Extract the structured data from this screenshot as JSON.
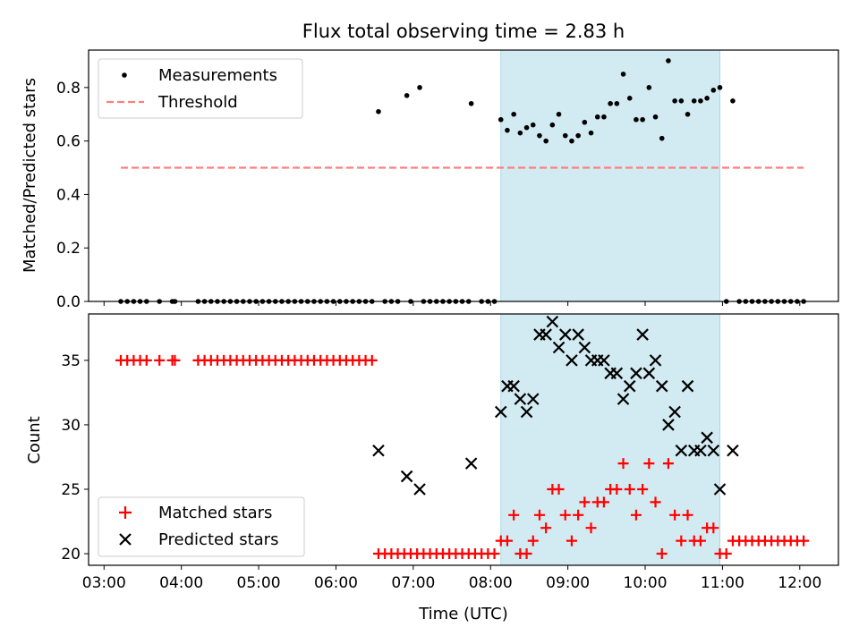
{
  "title": "Flux total observing time = 2.83 h",
  "colors": {
    "measurement": "#000000",
    "threshold": "#ff7f7f",
    "matched": "#ff0000",
    "predicted": "#000000",
    "highlight": "#add8e6"
  },
  "chart_data": [
    {
      "type": "scatter",
      "xlabel": "",
      "ylabel": "Matched/Predicted stars",
      "xlim": [
        "02:48",
        "12:30"
      ],
      "ylim": [
        0,
        0.94
      ],
      "yticks": [
        0.0,
        0.2,
        0.4,
        0.6,
        0.8
      ],
      "ytick_labels": [
        "0.0",
        "0.2",
        "0.4",
        "0.6",
        "0.8"
      ],
      "grid": false,
      "legend_position": "upper-left",
      "highlight_span": [
        "08:08",
        "10:58"
      ],
      "series": [
        {
          "name": "Measurements",
          "marker": "dot",
          "points": [
            [
              "03:13",
              0
            ],
            [
              "03:18",
              0
            ],
            [
              "03:23",
              0
            ],
            [
              "03:28",
              0
            ],
            [
              "03:33",
              0
            ],
            [
              "03:43",
              0
            ],
            [
              "03:53",
              0
            ],
            [
              "03:55",
              0
            ],
            [
              "04:13",
              0
            ],
            [
              "04:18",
              0
            ],
            [
              "04:23",
              0
            ],
            [
              "04:28",
              0
            ],
            [
              "04:33",
              0
            ],
            [
              "04:38",
              0
            ],
            [
              "04:43",
              0
            ],
            [
              "04:48",
              0
            ],
            [
              "04:53",
              0
            ],
            [
              "04:58",
              0
            ],
            [
              "05:03",
              0
            ],
            [
              "05:08",
              0
            ],
            [
              "05:13",
              0
            ],
            [
              "05:18",
              0
            ],
            [
              "05:23",
              0
            ],
            [
              "05:28",
              0
            ],
            [
              "05:33",
              0
            ],
            [
              "05:38",
              0
            ],
            [
              "05:43",
              0
            ],
            [
              "05:48",
              0
            ],
            [
              "05:53",
              0
            ],
            [
              "05:58",
              0
            ],
            [
              "06:03",
              0
            ],
            [
              "06:08",
              0
            ],
            [
              "06:13",
              0
            ],
            [
              "06:18",
              0
            ],
            [
              "06:23",
              0
            ],
            [
              "06:28",
              0
            ],
            [
              "06:33",
              0.71
            ],
            [
              "06:38",
              0
            ],
            [
              "06:43",
              0
            ],
            [
              "06:48",
              0
            ],
            [
              "06:55",
              0.77
            ],
            [
              "06:58",
              0
            ],
            [
              "07:05",
              0.8
            ],
            [
              "07:08",
              0
            ],
            [
              "07:13",
              0
            ],
            [
              "07:18",
              0
            ],
            [
              "07:23",
              0
            ],
            [
              "07:28",
              0
            ],
            [
              "07:33",
              0
            ],
            [
              "07:38",
              0
            ],
            [
              "07:43",
              0
            ],
            [
              "07:45",
              0.74
            ],
            [
              "07:53",
              0
            ],
            [
              "07:58",
              0
            ],
            [
              "08:03",
              0
            ],
            [
              "08:08",
              0.68
            ],
            [
              "08:13",
              0.64
            ],
            [
              "08:18",
              0.7
            ],
            [
              "08:23",
              0.63
            ],
            [
              "08:28",
              0.65
            ],
            [
              "08:33",
              0.66
            ],
            [
              "08:38",
              0.62
            ],
            [
              "08:43",
              0.6
            ],
            [
              "08:48",
              0.66
            ],
            [
              "08:53",
              0.7
            ],
            [
              "08:58",
              0.62
            ],
            [
              "09:03",
              0.6
            ],
            [
              "09:08",
              0.62
            ],
            [
              "09:13",
              0.67
            ],
            [
              "09:18",
              0.63
            ],
            [
              "09:23",
              0.69
            ],
            [
              "09:28",
              0.69
            ],
            [
              "09:33",
              0.74
            ],
            [
              "09:38",
              0.74
            ],
            [
              "09:43",
              0.85
            ],
            [
              "09:48",
              0.76
            ],
            [
              "09:53",
              0.68
            ],
            [
              "09:58",
              0.68
            ],
            [
              "10:03",
              0.8
            ],
            [
              "10:08",
              0.69
            ],
            [
              "10:13",
              0.61
            ],
            [
              "10:18",
              0.9
            ],
            [
              "10:23",
              0.75
            ],
            [
              "10:28",
              0.75
            ],
            [
              "10:33",
              0.7
            ],
            [
              "10:38",
              0.75
            ],
            [
              "10:43",
              0.75
            ],
            [
              "10:48",
              0.76
            ],
            [
              "10:53",
              0.79
            ],
            [
              "10:58",
              0.8
            ],
            [
              "11:03",
              0
            ],
            [
              "11:08",
              0.75
            ],
            [
              "11:13",
              0
            ],
            [
              "11:18",
              0
            ],
            [
              "11:23",
              0
            ],
            [
              "11:28",
              0
            ],
            [
              "11:33",
              0
            ],
            [
              "11:38",
              0
            ],
            [
              "11:43",
              0
            ],
            [
              "11:48",
              0
            ],
            [
              "11:53",
              0
            ],
            [
              "11:58",
              0
            ],
            [
              "12:03",
              0
            ]
          ]
        },
        {
          "name": "Threshold",
          "line": "dashed",
          "x": [
            "03:13",
            "12:03"
          ],
          "y": [
            0.5,
            0.5
          ]
        }
      ]
    },
    {
      "type": "scatter",
      "xlabel": "Time (UTC)",
      "ylabel": "Count",
      "xlim": [
        "02:48",
        "12:30"
      ],
      "xticks": [
        "03:00",
        "04:00",
        "05:00",
        "06:00",
        "07:00",
        "08:00",
        "09:00",
        "10:00",
        "11:00",
        "12:00"
      ],
      "ylim": [
        19.1,
        38.6
      ],
      "yticks": [
        20,
        25,
        30,
        35
      ],
      "ytick_labels": [
        "20",
        "25",
        "30",
        "35"
      ],
      "grid": false,
      "legend_position": "lower-left",
      "highlight_span": [
        "08:08",
        "10:58"
      ],
      "series": [
        {
          "name": "Matched stars",
          "marker": "plus",
          "points": [
            [
              "03:13",
              35
            ],
            [
              "03:18",
              35
            ],
            [
              "03:23",
              35
            ],
            [
              "03:28",
              35
            ],
            [
              "03:33",
              35
            ],
            [
              "03:43",
              35
            ],
            [
              "03:53",
              35
            ],
            [
              "03:55",
              35
            ],
            [
              "04:13",
              35
            ],
            [
              "04:18",
              35
            ],
            [
              "04:23",
              35
            ],
            [
              "04:28",
              35
            ],
            [
              "04:33",
              35
            ],
            [
              "04:38",
              35
            ],
            [
              "04:43",
              35
            ],
            [
              "04:48",
              35
            ],
            [
              "04:53",
              35
            ],
            [
              "04:58",
              35
            ],
            [
              "05:03",
              35
            ],
            [
              "05:08",
              35
            ],
            [
              "05:13",
              35
            ],
            [
              "05:18",
              35
            ],
            [
              "05:23",
              35
            ],
            [
              "05:28",
              35
            ],
            [
              "05:33",
              35
            ],
            [
              "05:38",
              35
            ],
            [
              "05:43",
              35
            ],
            [
              "05:48",
              35
            ],
            [
              "05:53",
              35
            ],
            [
              "05:58",
              35
            ],
            [
              "06:03",
              35
            ],
            [
              "06:08",
              35
            ],
            [
              "06:13",
              35
            ],
            [
              "06:18",
              35
            ],
            [
              "06:23",
              35
            ],
            [
              "06:28",
              35
            ],
            [
              "06:33",
              20
            ],
            [
              "06:38",
              20
            ],
            [
              "06:43",
              20
            ],
            [
              "06:48",
              20
            ],
            [
              "06:53",
              20
            ],
            [
              "06:58",
              20
            ],
            [
              "07:03",
              20
            ],
            [
              "07:08",
              20
            ],
            [
              "07:13",
              20
            ],
            [
              "07:18",
              20
            ],
            [
              "07:23",
              20
            ],
            [
              "07:28",
              20
            ],
            [
              "07:33",
              20
            ],
            [
              "07:38",
              20
            ],
            [
              "07:43",
              20
            ],
            [
              "07:48",
              20
            ],
            [
              "07:53",
              20
            ],
            [
              "07:58",
              20
            ],
            [
              "08:03",
              20
            ],
            [
              "08:08",
              21
            ],
            [
              "08:13",
              21
            ],
            [
              "08:18",
              23
            ],
            [
              "08:23",
              20
            ],
            [
              "08:28",
              20
            ],
            [
              "08:33",
              21
            ],
            [
              "08:38",
              23
            ],
            [
              "08:43",
              22
            ],
            [
              "08:48",
              25
            ],
            [
              "08:53",
              25
            ],
            [
              "08:58",
              23
            ],
            [
              "09:03",
              21
            ],
            [
              "09:08",
              23
            ],
            [
              "09:13",
              24
            ],
            [
              "09:18",
              22
            ],
            [
              "09:23",
              24
            ],
            [
              "09:28",
              24
            ],
            [
              "09:33",
              25
            ],
            [
              "09:38",
              25
            ],
            [
              "09:43",
              27
            ],
            [
              "09:48",
              25
            ],
            [
              "09:53",
              23
            ],
            [
              "09:58",
              25
            ],
            [
              "10:03",
              27
            ],
            [
              "10:08",
              24
            ],
            [
              "10:13",
              20
            ],
            [
              "10:18",
              27
            ],
            [
              "10:23",
              23
            ],
            [
              "10:28",
              21
            ],
            [
              "10:33",
              23
            ],
            [
              "10:38",
              21
            ],
            [
              "10:43",
              21
            ],
            [
              "10:48",
              22
            ],
            [
              "10:53",
              22
            ],
            [
              "10:58",
              20
            ],
            [
              "11:03",
              20
            ],
            [
              "11:08",
              21
            ],
            [
              "11:13",
              21
            ],
            [
              "11:18",
              21
            ],
            [
              "11:23",
              21
            ],
            [
              "11:28",
              21
            ],
            [
              "11:33",
              21
            ],
            [
              "11:38",
              21
            ],
            [
              "11:43",
              21
            ],
            [
              "11:48",
              21
            ],
            [
              "11:53",
              21
            ],
            [
              "11:58",
              21
            ],
            [
              "12:03",
              21
            ]
          ]
        },
        {
          "name": "Predicted stars",
          "marker": "x",
          "points": [
            [
              "06:33",
              28
            ],
            [
              "06:55",
              26
            ],
            [
              "07:05",
              25
            ],
            [
              "07:45",
              27
            ],
            [
              "08:08",
              31
            ],
            [
              "08:13",
              33
            ],
            [
              "08:18",
              33
            ],
            [
              "08:23",
              32
            ],
            [
              "08:28",
              31
            ],
            [
              "08:33",
              32
            ],
            [
              "08:38",
              37
            ],
            [
              "08:43",
              37
            ],
            [
              "08:48",
              38
            ],
            [
              "08:53",
              36
            ],
            [
              "08:58",
              37
            ],
            [
              "09:03",
              35
            ],
            [
              "09:08",
              37
            ],
            [
              "09:13",
              36
            ],
            [
              "09:18",
              35
            ],
            [
              "09:23",
              35
            ],
            [
              "09:28",
              35
            ],
            [
              "09:33",
              34
            ],
            [
              "09:38",
              34
            ],
            [
              "09:43",
              32
            ],
            [
              "09:48",
              33
            ],
            [
              "09:53",
              34
            ],
            [
              "09:58",
              37
            ],
            [
              "10:03",
              34
            ],
            [
              "10:08",
              35
            ],
            [
              "10:13",
              33
            ],
            [
              "10:18",
              30
            ],
            [
              "10:23",
              31
            ],
            [
              "10:28",
              28
            ],
            [
              "10:33",
              33
            ],
            [
              "10:38",
              28
            ],
            [
              "10:43",
              28
            ],
            [
              "10:48",
              29
            ],
            [
              "10:53",
              28
            ],
            [
              "10:58",
              25
            ],
            [
              "11:08",
              28
            ]
          ]
        }
      ]
    }
  ]
}
